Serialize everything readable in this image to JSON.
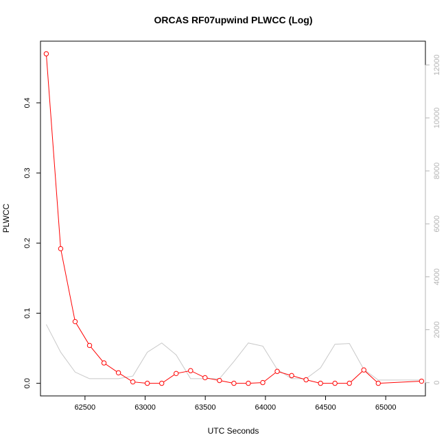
{
  "chart_data": {
    "type": "line",
    "title": "ORCAS RF07upwind PLWCC (Log)",
    "xlabel": "UTC Seconds",
    "ylabel": "PLWCC",
    "xlim": [
      62130,
      65330
    ],
    "ylim": [
      -0.018,
      0.488
    ],
    "y2lim": [
      -500,
      12900
    ],
    "x_ticks": [
      62500,
      63000,
      63500,
      64000,
      64500,
      65000
    ],
    "y_ticks": [
      0.0,
      0.1,
      0.2,
      0.3,
      0.4
    ],
    "y_tick_labels": [
      "0.0",
      "0.1",
      "0.2",
      "0.3",
      "0.4"
    ],
    "y2_ticks": [
      0,
      2000,
      4000,
      6000,
      8000,
      10000,
      12000
    ],
    "grid": false,
    "legend": "none",
    "colors": {
      "primary": "#ff0000",
      "secondary": "#c8c8c8",
      "axis": "#000000",
      "secondary_axis": "#b4b4b4"
    },
    "series": [
      {
        "axis": "left",
        "style": "line+points",
        "x": [
          62178,
          62298,
          62418,
          62538,
          62658,
          62778,
          62898,
          63018,
          63138,
          63258,
          63378,
          63498,
          63618,
          63738,
          63858,
          63978,
          64098,
          64218,
          64338,
          64458,
          64578,
          64698,
          64818,
          64938,
          65298
        ],
        "values": [
          0.47,
          0.192,
          0.088,
          0.054,
          0.029,
          0.015,
          0.002,
          0.0,
          0.0,
          0.014,
          0.018,
          0.008,
          0.004,
          0.0,
          0.0,
          0.001,
          0.017,
          0.011,
          0.005,
          0.0,
          0.0,
          0.0,
          0.019,
          0.0,
          0.003
        ]
      },
      {
        "axis": "right",
        "style": "line",
        "x": [
          62178,
          62298,
          62418,
          62538,
          62658,
          62778,
          62898,
          63018,
          63138,
          63258,
          63378,
          63498,
          63618,
          63738,
          63858,
          63978,
          64098,
          64218,
          64338,
          64458,
          64578,
          64698,
          64818,
          64938,
          65298
        ],
        "values": [
          2200,
          1150,
          400,
          150,
          150,
          150,
          250,
          1150,
          1500,
          1050,
          150,
          150,
          150,
          800,
          1500,
          1380,
          500,
          150,
          150,
          560,
          1450,
          1480,
          500,
          100,
          100
        ]
      }
    ]
  }
}
